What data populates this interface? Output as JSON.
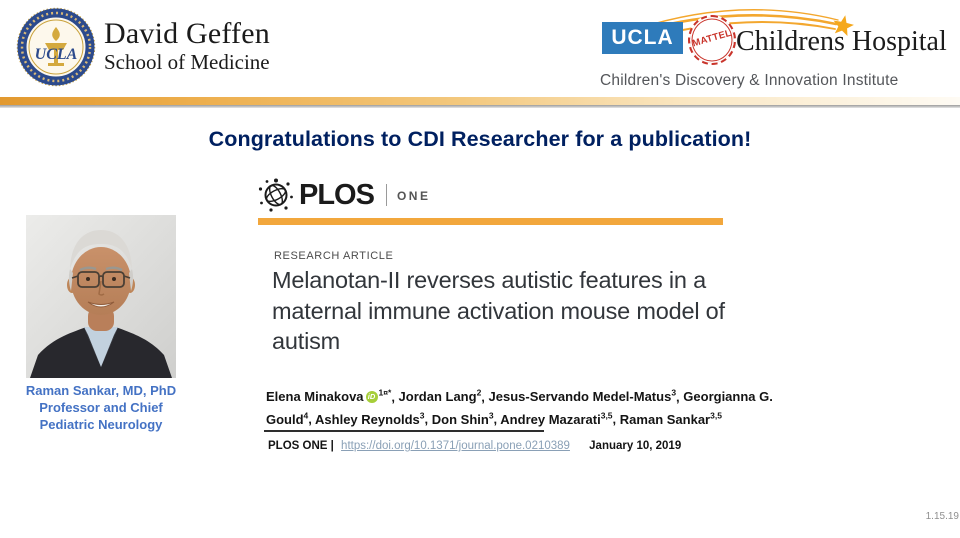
{
  "colors": {
    "heading_blue": "#002060",
    "caption_blue": "#4472C4",
    "header_gold": "#EDA63D",
    "plos_orange": "#F2A73C",
    "ucla_blue": "#2E7BBB",
    "mattel_red": "#C9342B",
    "orcid_green": "#A6CE39",
    "doi_link_color": "#8AA0B6"
  },
  "header": {
    "dgsom": {
      "seal_label": "UCLA",
      "name_line1": "David Geffen",
      "name_line2": "School of Medicine"
    },
    "childrens": {
      "ucla_box_label": "UCLA",
      "stamp_label": "MATTEL",
      "hospital_name": "Childrens Hospital",
      "institute_name": "Children's Discovery & Innovation Institute"
    }
  },
  "slide": {
    "heading": "Congratulations to CDI Researcher for a publication!",
    "corner_date": "1.15.19"
  },
  "researcher": {
    "caption_lines": [
      "Raman Sankar, MD, PhD",
      "Professor and Chief",
      "Pediatric Neurology"
    ]
  },
  "article": {
    "journal_name": "PLOS",
    "journal_edition": "ONE",
    "kicker": "RESEARCH ARTICLE",
    "title_lines": [
      "Melanotan-II reverses autistic features in a",
      "maternal immune activation mouse model of",
      "autism"
    ],
    "orcid_label": "iD",
    "authors": [
      {
        "name": "Elena Minakova",
        "orcid": true,
        "sup": "1¤*"
      },
      {
        "name": "Jordan Lang",
        "sup": "2"
      },
      {
        "name": "Jesus-Servando Medel-Matus",
        "sup": "3"
      },
      {
        "name": "Georgianna G. Gould",
        "sup": "4"
      },
      {
        "name": "Ashley Reynolds",
        "sup": "3"
      },
      {
        "name": "Don Shin",
        "sup": "3"
      },
      {
        "name": "Andrey Mazarati",
        "sup": "3,5"
      },
      {
        "name": "Raman Sankar",
        "sup": "3,5"
      }
    ],
    "footer": {
      "journal_label": "PLOS ONE |",
      "doi_link": "https://doi.org/10.1371/journal.pone.0210389",
      "pub_date": "January 10, 2019"
    }
  }
}
